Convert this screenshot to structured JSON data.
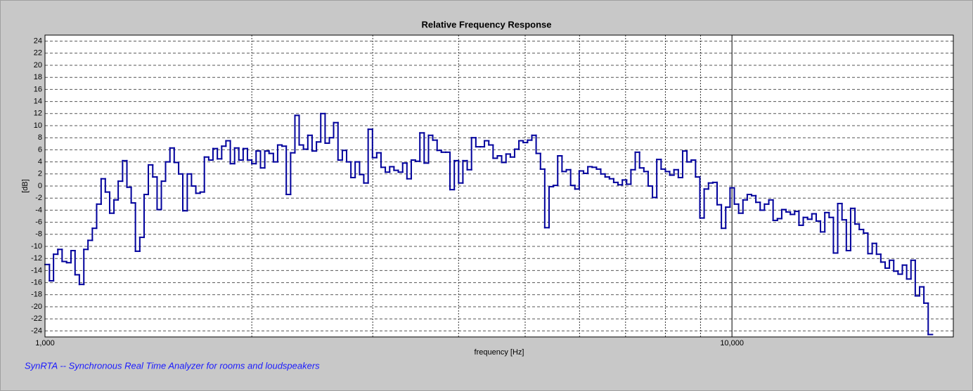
{
  "chart_data": {
    "type": "step",
    "title": "Relative Frequency Response",
    "xlabel": "frequency [Hz]",
    "ylabel": "[dB]",
    "annotation": "SynRTA -- Synchronous Real Time Analyzer for rooms and loudspeakers",
    "xscale": "log",
    "xlim": [
      1000,
      21000
    ],
    "ylim": [
      -25,
      25
    ],
    "xticks": [
      {
        "value": 1000,
        "label": "1,000"
      },
      {
        "value": 10000,
        "label": "10,000"
      }
    ],
    "xminor": [
      2000,
      3000,
      4000,
      5000,
      6000,
      7000,
      8000,
      9000
    ],
    "yticks": [
      -24,
      -22,
      -20,
      -18,
      -16,
      -14,
      -12,
      -10,
      -8,
      -6,
      -4,
      -2,
      0,
      2,
      4,
      6,
      8,
      10,
      12,
      14,
      16,
      18,
      20,
      22,
      24
    ],
    "grid": true,
    "color": "#00009c",
    "x": [
      1000,
      1015,
      1029,
      1044,
      1059,
      1075,
      1091,
      1106,
      1122,
      1139,
      1155,
      1172,
      1189,
      1207,
      1224,
      1242,
      1260,
      1278,
      1297,
      1316,
      1335,
      1354,
      1374,
      1394,
      1414,
      1435,
      1456,
      1477,
      1498,
      1520,
      1542,
      1565,
      1587,
      1611,
      1634,
      1658,
      1682,
      1706,
      1731,
      1756,
      1782,
      1808,
      1834,
      1861,
      1888,
      1915,
      1943,
      1971,
      2000,
      2029,
      2059,
      2089,
      2119,
      2150,
      2181,
      2213,
      2245,
      2278,
      2311,
      2344,
      2378,
      2413,
      2448,
      2484,
      2520,
      2557,
      2594,
      2631,
      2670,
      2709,
      2748,
      2788,
      2828,
      2870,
      2911,
      2954,
      2997,
      3040,
      3084,
      3129,
      3175,
      3221,
      3268,
      3316,
      3364,
      3413,
      3462,
      3513,
      3564,
      3616,
      3668,
      3722,
      3775,
      3831,
      3886,
      3943,
      4000,
      4058,
      4117,
      4177,
      4238,
      4300,
      4362,
      4426,
      4490,
      4555,
      4621,
      4689,
      4757,
      4826,
      4896,
      4967,
      5040,
      5113,
      5187,
      5263,
      5339,
      5417,
      5496,
      5576,
      5657,
      5739,
      5823,
      5907,
      5993,
      6081,
      6169,
      6259,
      6350,
      6442,
      6536,
      6631,
      6727,
      6825,
      6925,
      7025,
      7127,
      7231,
      7336,
      7443,
      7551,
      7661,
      7772,
      7886,
      8000,
      8116,
      8234,
      8354,
      8476,
      8599,
      8724,
      8851,
      8980,
      9110,
      9243,
      9377,
      9514,
      9652,
      9793,
      9935,
      10079,
      10226,
      10375,
      10526,
      10679,
      10834,
      10991,
      11151,
      11314,
      11478,
      11645,
      11815,
      11987,
      12161,
      12338,
      12517,
      12699,
      12884,
      13071,
      13262,
      13454,
      13650,
      13849,
      14050,
      14254,
      14461,
      14672,
      14885,
      15102,
      15322,
      15544,
      15771,
      16000,
      16232,
      16469,
      16709,
      16951,
      17198,
      17448,
      17702,
      17959,
      18221,
      18485,
      18755,
      19027,
      19304
    ],
    "values": [
      -13,
      -15.7,
      -11.3,
      -10.5,
      -12.5,
      -12.7,
      -10.7,
      -14.7,
      -16.3,
      -10.5,
      -9,
      -7,
      -3,
      1.2,
      -1,
      -4.5,
      -2.3,
      0.8,
      4.2,
      -0.2,
      -2.8,
      -10.8,
      -8.5,
      -1.4,
      3.5,
      1.5,
      -3.9,
      0.8,
      4,
      6.3,
      3.9,
      2,
      -4.1,
      2,
      0,
      -1.2,
      -1,
      4.8,
      4.3,
      6.2,
      4.5,
      6.6,
      7.5,
      3.7,
      6.3,
      4.3,
      6.2,
      4.3,
      3.7,
      5.8,
      3,
      5.8,
      5.4,
      4,
      6.8,
      6.6,
      -1.4,
      5.5,
      11.7,
      6.8,
      6.1,
      8.4,
      5.8,
      7.3,
      12,
      7.1,
      8,
      10.5,
      4.3,
      5.9,
      4,
      1.4,
      4,
      1.9,
      0.5,
      9.4,
      4.7,
      5.5,
      3.1,
      2.3,
      3.2,
      2.6,
      2.3,
      3.8,
      1.2,
      4.3,
      4.1,
      8.8,
      3.8,
      8.4,
      7.6,
      5.9,
      5.6,
      5.6,
      -0.6,
      4.2,
      0.5,
      4.2,
      2.7,
      8,
      6.5,
      6.5,
      7.5,
      6.8,
      4.6,
      5,
      3.9,
      5.3,
      4.8,
      6.1,
      7.5,
      7.2,
      7.6,
      8.4,
      5.4,
      2.8,
      -6.9,
      -0.1,
      0.1,
      5,
      2.4,
      2.7,
      0.1,
      -0.5,
      2.5,
      2.1,
      3.2,
      3.1,
      2.8,
      2,
      1.5,
      1.2,
      0.6,
      0.2,
      1,
      0.3,
      2.7,
      5.6,
      3,
      2.4,
      0,
      -1.9,
      4.4,
      2.8,
      2.4,
      1.8,
      2.7,
      1.4,
      5.8,
      4,
      4.3,
      1.5,
      -5.3,
      -0.5,
      0.5,
      0.6,
      -3.1,
      -7,
      -3.5,
      -0.3,
      -3,
      -4.5,
      -2.3,
      -1.4,
      -1.6,
      -2.7,
      -4,
      -3,
      -2.3,
      -5.7,
      -5.4,
      -3.9,
      -4.3,
      -4.7,
      -4.2,
      -6.5,
      -5.2,
      -5.5,
      -4.6,
      -5.8,
      -7.6,
      -4.4,
      -5.2,
      -11.1,
      -2.9,
      -5.6,
      -10.7,
      -3.7,
      -6.3,
      -7.2,
      -7.8,
      -11.2,
      -9.5,
      -11.3,
      -12.6,
      -13.6,
      -12.3,
      -14.1,
      -14.6,
      -13.1,
      -15.4,
      -12.3,
      -18.2,
      -16.7,
      -19.4,
      -24.6
    ]
  }
}
